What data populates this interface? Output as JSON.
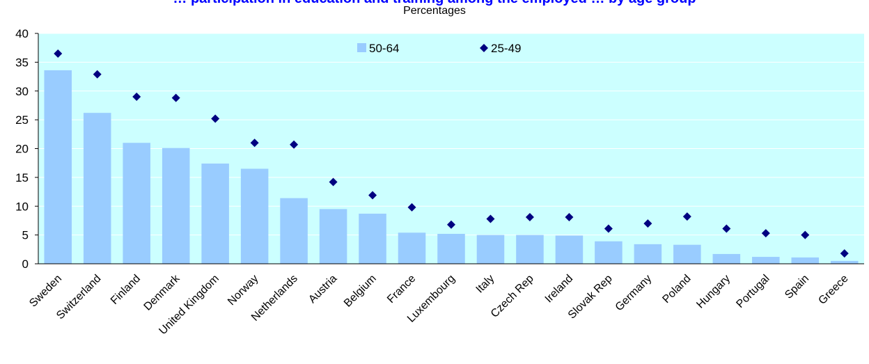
{
  "chart_data": {
    "type": "bar",
    "title": "… participation in education and training among the employed … by age group",
    "subtitle": "Percentages",
    "categories": [
      "Sweden",
      "Switzerland",
      "Finland",
      "Denmark",
      "United Kingdom",
      "Norway",
      "Netherlands",
      "Austria",
      "Belgium",
      "France",
      "Luxembourg",
      "Italy",
      "Czech Rep",
      "Ireland",
      "Slovak Rep",
      "Germany",
      "Poland",
      "Hungary",
      "Portugal",
      "Spain",
      "Greece"
    ],
    "series": [
      {
        "name": "50-64",
        "mark": "bar",
        "values": [
          33.6,
          26.2,
          21.0,
          20.1,
          17.4,
          16.5,
          11.4,
          9.5,
          8.7,
          5.4,
          5.2,
          5.0,
          5.0,
          4.9,
          3.9,
          3.4,
          3.3,
          1.7,
          1.2,
          1.1,
          0.5
        ]
      },
      {
        "name": "25-49",
        "mark": "diamond",
        "values": [
          36.5,
          32.9,
          29.0,
          28.8,
          25.2,
          21.0,
          20.7,
          14.2,
          11.9,
          9.8,
          6.8,
          7.8,
          8.1,
          8.1,
          6.1,
          7.0,
          8.2,
          6.1,
          5.3,
          5.0,
          1.8
        ]
      }
    ],
    "ylim": [
      0,
      40
    ],
    "yticks": [
      0,
      5,
      10,
      15,
      20,
      25,
      30,
      35,
      40
    ],
    "xlabel": "",
    "ylabel": "",
    "grid": true,
    "legend_position": "top-center",
    "colors": {
      "background": "#ccffff",
      "bar": "#99ccff",
      "marker": "#000080",
      "gridline": "#ffffff",
      "title": "#0000ff"
    }
  }
}
